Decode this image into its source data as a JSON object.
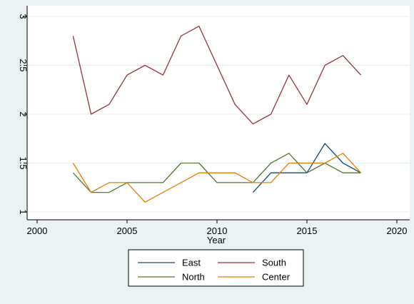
{
  "chart_data": {
    "type": "line",
    "title": "",
    "xlabel": "Year",
    "ylabel": "",
    "xlim": [
      2000,
      2020
    ],
    "ylim": [
      1,
      3
    ],
    "x_ticks": [
      2000,
      2005,
      2010,
      2015,
      2020
    ],
    "y_ticks": [
      1,
      1.5,
      2,
      2.5,
      3
    ],
    "grid": "horizontal",
    "legend_placement": "bottom",
    "background_color": "#eaf2f3",
    "plot_background_color": "#ffffff",
    "series": [
      {
        "name": "East",
        "color": "#1a476f",
        "x": [
          2012,
          2013,
          2014,
          2015,
          2016,
          2017,
          2018
        ],
        "y": [
          1.2,
          1.4,
          1.4,
          1.4,
          1.7,
          1.5,
          1.4
        ]
      },
      {
        "name": "South",
        "color": "#90353b",
        "x": [
          2002,
          2003,
          2004,
          2005,
          2006,
          2007,
          2008,
          2009,
          2010,
          2011,
          2012,
          2013,
          2014,
          2015,
          2016,
          2017,
          2018
        ],
        "y": [
          2.8,
          2.0,
          2.1,
          2.4,
          2.5,
          2.4,
          2.8,
          2.9,
          2.5,
          2.1,
          1.9,
          2.0,
          2.4,
          2.1,
          2.5,
          2.6,
          2.4
        ]
      },
      {
        "name": "North",
        "color": "#55752f",
        "x": [
          2002,
          2003,
          2004,
          2005,
          2006,
          2007,
          2008,
          2009,
          2010,
          2011,
          2012,
          2013,
          2014,
          2015,
          2016,
          2017,
          2018
        ],
        "y": [
          1.4,
          1.2,
          1.2,
          1.3,
          1.3,
          1.3,
          1.5,
          1.5,
          1.3,
          1.3,
          1.3,
          1.5,
          1.6,
          1.4,
          1.5,
          1.4,
          1.4
        ]
      },
      {
        "name": "Center",
        "color": "#e37e00",
        "x": [
          2002,
          2003,
          2004,
          2005,
          2006,
          2007,
          2008,
          2009,
          2010,
          2011,
          2012,
          2013,
          2014,
          2015,
          2016,
          2017,
          2018
        ],
        "y": [
          1.5,
          1.2,
          1.3,
          1.3,
          1.1,
          1.2,
          1.3,
          1.4,
          1.4,
          1.4,
          1.3,
          1.3,
          1.5,
          1.5,
          1.5,
          1.6,
          1.4
        ]
      }
    ]
  }
}
